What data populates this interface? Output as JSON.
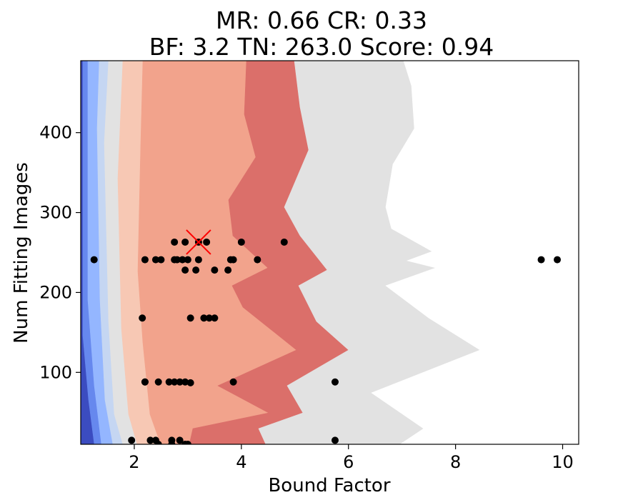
{
  "chart_data": {
    "type": "scatter",
    "title_lines": [
      "MR: 0.66  CR: 0.33",
      "BF: 3.2  TN: 263.0  Score: 0.94"
    ],
    "xlabel": "Bound Factor",
    "ylabel": "Num Fitting Images",
    "xlim": [
      1.0,
      10.3
    ],
    "ylim": [
      10,
      490
    ],
    "xticks": [
      "2",
      "4",
      "6",
      "8",
      "10"
    ],
    "xtick_values": [
      2,
      4,
      6,
      8,
      10
    ],
    "yticks": [
      "100",
      "200",
      "300",
      "400"
    ],
    "ytick_values": [
      100,
      200,
      300,
      400
    ],
    "grid": false,
    "contour_background": {
      "colormap": "coolwarm",
      "levels": [
        {
          "color": "#3b4cc0"
        },
        {
          "color": "#6688ee"
        },
        {
          "color": "#94b6ff"
        },
        {
          "color": "#c5d6f2"
        },
        {
          "color": "#e2e2e2"
        },
        {
          "color": "#f7c8b4"
        },
        {
          "color": "#f2a38c"
        },
        {
          "color": "#db6f6a"
        }
      ]
    },
    "points": {
      "color": "#000000",
      "x": [
        1.25,
        2.2,
        2.4,
        2.5,
        2.75,
        2.8,
        2.9,
        3.0,
        3.2,
        3.75,
        3.85,
        4.3,
        2.95,
        3.15,
        3.5,
        3.8,
        2.75,
        2.95,
        3.2,
        3.35,
        4.0,
        4.8,
        2.15,
        3.05,
        3.3,
        3.4,
        3.5,
        2.2,
        2.2,
        2.45,
        2.65,
        2.75,
        2.85,
        2.95,
        3.05,
        3.85,
        5.75,
        1.95,
        2.3,
        2.4,
        2.7,
        2.85,
        5.75,
        2.45,
        2.7,
        2.95,
        3.0,
        9.6,
        9.9
      ],
      "y": [
        241,
        241,
        241,
        241,
        241,
        241,
        241,
        241,
        241,
        228,
        241,
        241,
        228,
        228,
        228,
        241,
        263,
        263,
        263,
        263,
        263,
        263,
        168,
        168,
        168,
        168,
        168,
        88,
        88,
        88,
        88,
        88,
        88,
        88,
        87,
        88,
        88,
        15,
        15,
        15,
        15,
        15,
        15,
        10,
        10,
        10,
        10,
        241,
        241
      ]
    },
    "best": {
      "x": 3.2,
      "y": 263,
      "color": "#ff0000",
      "marker": "x"
    }
  }
}
